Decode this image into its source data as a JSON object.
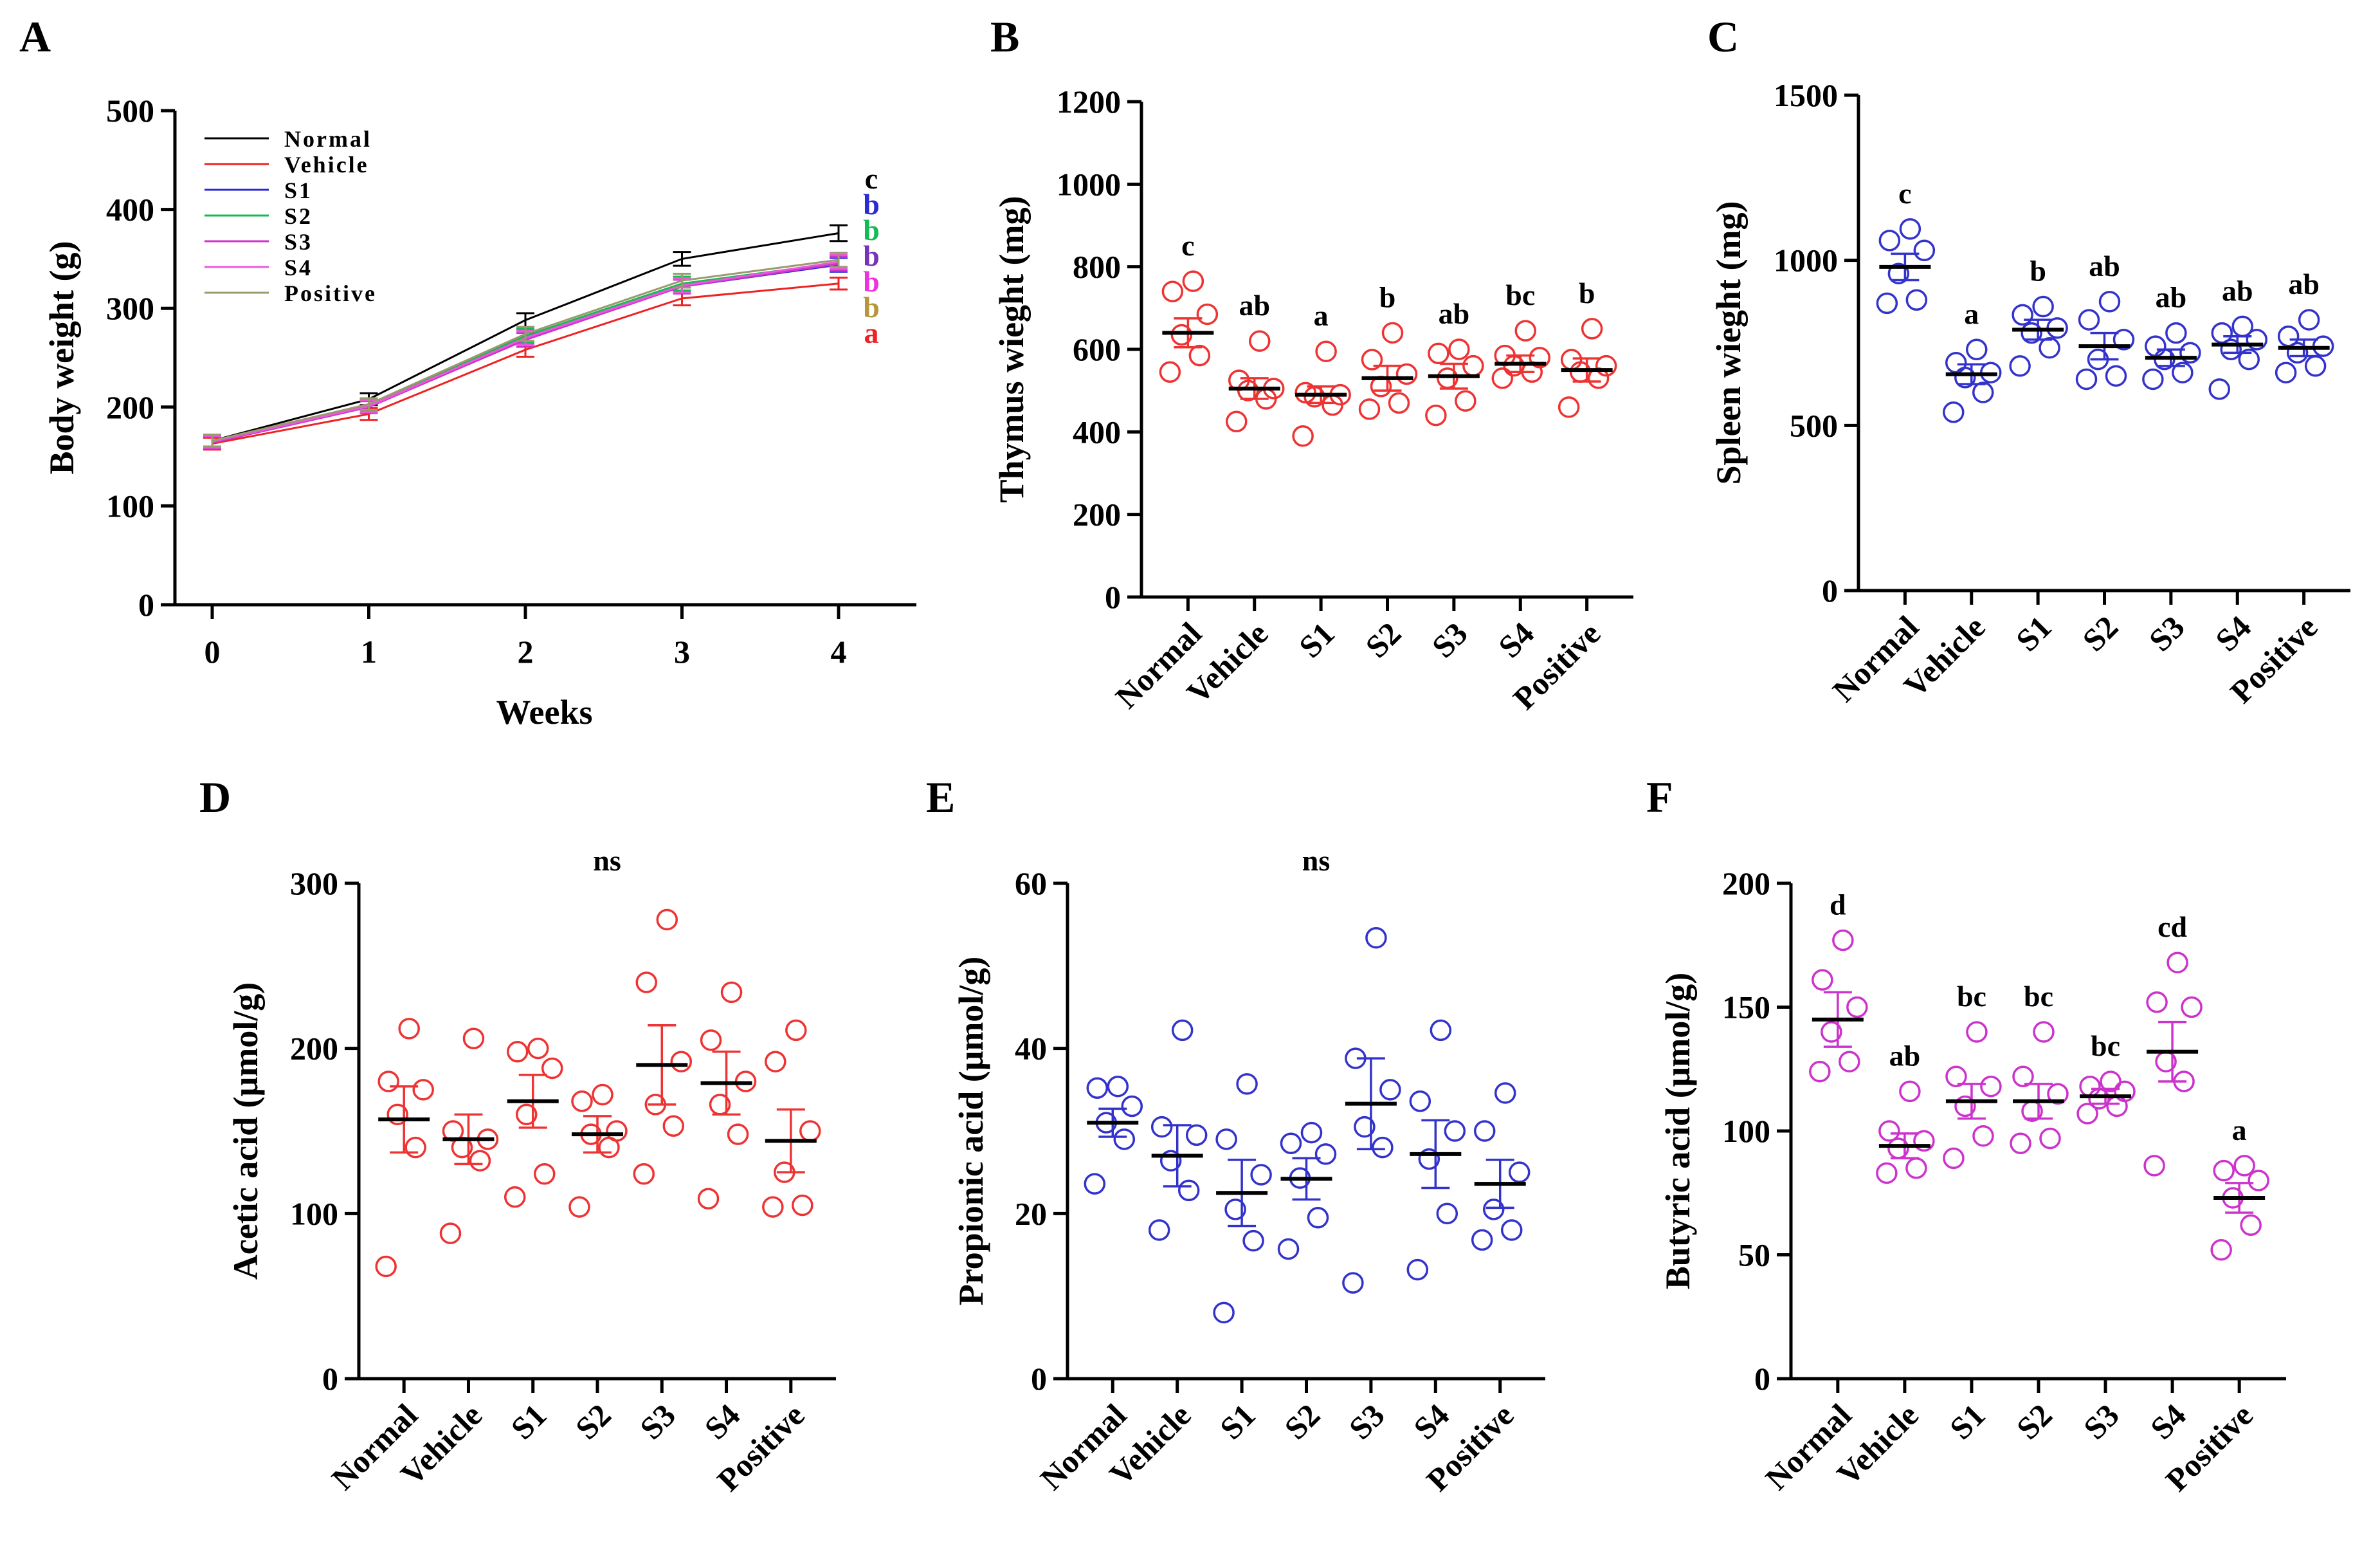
{
  "chart_data": [
    {
      "panel": "A",
      "type": "line",
      "xlabel": "Weeks",
      "ylabel": "Body weight (g)",
      "x": [
        0,
        1,
        2,
        3,
        4
      ],
      "xlim": [
        -0.2,
        4.5
      ],
      "ylim": [
        0,
        500
      ],
      "yticks": [
        0,
        100,
        200,
        300,
        400,
        500
      ],
      "legend_position": "top-left",
      "series": [
        {
          "name": "Normal",
          "color": "#000000",
          "values": [
            166,
            208,
            288,
            350,
            376
          ],
          "errors": [
            6,
            6,
            7,
            7,
            8
          ],
          "sig": "c",
          "sig_color": "#000000"
        },
        {
          "name": "Vehicle",
          "color": "#ee2222",
          "values": [
            163,
            193,
            258,
            310,
            325
          ],
          "errors": [
            6,
            6,
            7,
            7,
            6
          ],
          "sig": "a",
          "sig_color": "#ee2222"
        },
        {
          "name": "S1",
          "color": "#2a2ad6",
          "values": [
            165,
            201,
            270,
            322,
            344
          ],
          "errors": [
            6,
            6,
            7,
            7,
            7
          ],
          "sig": "b",
          "sig_color": "#2a2ad6"
        },
        {
          "name": "S2",
          "color": "#11bb55",
          "values": [
            165,
            202,
            272,
            325,
            346
          ],
          "errors": [
            6,
            6,
            7,
            7,
            7
          ],
          "sig": "b",
          "sig_color": "#11bb55"
        },
        {
          "name": "S3",
          "color": "#cc33cc",
          "values": [
            164,
            200,
            268,
            322,
            345
          ],
          "errors": [
            6,
            6,
            7,
            7,
            7
          ],
          "sig": "b",
          "sig_color": "#7733bb"
        },
        {
          "name": "S4",
          "color": "#ee55dd",
          "values": [
            165,
            201,
            270,
            323,
            347
          ],
          "errors": [
            6,
            6,
            7,
            7,
            7
          ],
          "sig": "b",
          "sig_color": "#ee33dd"
        },
        {
          "name": "Positive",
          "color": "#9a9a6e",
          "values": [
            166,
            203,
            274,
            328,
            349
          ],
          "errors": [
            6,
            6,
            7,
            7,
            7
          ],
          "sig": "b",
          "sig_color": "#b8963a"
        }
      ]
    },
    {
      "panel": "B",
      "type": "scatter",
      "ylabel": "Thymus wieght (mg)",
      "color": "#ee3333",
      "ylim": [
        0,
        1200
      ],
      "yticks": [
        0,
        200,
        400,
        600,
        800,
        1000,
        1200
      ],
      "categories": [
        "Normal",
        "Vehicle",
        "S1",
        "S2",
        "S3",
        "S4",
        "Positive"
      ],
      "means": [
        640,
        505,
        490,
        530,
        535,
        565,
        550
      ],
      "sems": [
        35,
        25,
        20,
        30,
        30,
        20,
        28
      ],
      "points": [
        [
          545,
          585,
          635,
          685,
          740,
          765
        ],
        [
          425,
          480,
          500,
          505,
          525,
          620
        ],
        [
          390,
          465,
          485,
          490,
          495,
          595
        ],
        [
          455,
          470,
          510,
          540,
          575,
          640
        ],
        [
          440,
          475,
          530,
          560,
          590,
          600
        ],
        [
          530,
          545,
          560,
          580,
          585,
          645
        ],
        [
          460,
          530,
          545,
          560,
          575,
          650
        ]
      ],
      "sig": [
        "c",
        "ab",
        "a",
        "b",
        "ab",
        "bc",
        "b"
      ]
    },
    {
      "panel": "C",
      "type": "scatter",
      "ylabel": "Spleen wieght (mg)",
      "color": "#3333cc",
      "ylim": [
        0,
        1500
      ],
      "yticks": [
        0,
        500,
        1000,
        1500
      ],
      "categories": [
        "Normal",
        "Vehicle",
        "S1",
        "S2",
        "S3",
        "S4",
        "Positive"
      ],
      "means": [
        980,
        655,
        790,
        740,
        705,
        745,
        735
      ],
      "sems": [
        40,
        30,
        30,
        40,
        25,
        25,
        25
      ],
      "points": [
        [
          870,
          880,
          960,
          1030,
          1060,
          1095
        ],
        [
          540,
          600,
          645,
          660,
          690,
          730
        ],
        [
          680,
          735,
          780,
          795,
          835,
          860
        ],
        [
          640,
          650,
          700,
          760,
          820,
          875
        ],
        [
          640,
          660,
          700,
          720,
          740,
          780
        ],
        [
          610,
          700,
          730,
          760,
          780,
          800
        ],
        [
          660,
          680,
          720,
          740,
          770,
          820
        ]
      ],
      "sig": [
        "c",
        "a",
        "b",
        "ab",
        "ab",
        "ab",
        "ab"
      ]
    },
    {
      "panel": "D",
      "type": "scatter",
      "ylabel": "Acetic acid (μmol/g)",
      "color": "#ee3333",
      "ylim": [
        0,
        300
      ],
      "yticks": [
        0,
        100,
        200,
        300
      ],
      "categories": [
        "Normal",
        "Vehicle",
        "S1",
        "S2",
        "S3",
        "S4",
        "Positive"
      ],
      "means": [
        157,
        145,
        168,
        148,
        190,
        179,
        144
      ],
      "sems": [
        20,
        15,
        16,
        11,
        24,
        19,
        19
      ],
      "points": [
        [
          68,
          140,
          160,
          175,
          180,
          212
        ],
        [
          88,
          132,
          140,
          145,
          150,
          206
        ],
        [
          110,
          124,
          160,
          188,
          198,
          200
        ],
        [
          104,
          140,
          148,
          150,
          168,
          172
        ],
        [
          124,
          153,
          166,
          192,
          240,
          278
        ],
        [
          109,
          148,
          166,
          180,
          205,
          234
        ],
        [
          104,
          105,
          125,
          150,
          192,
          211
        ]
      ],
      "annotation": "ns"
    },
    {
      "panel": "E",
      "type": "scatter",
      "ylabel": "Propionic acid (μmol/g)",
      "color": "#3333cc",
      "ylim": [
        0,
        60
      ],
      "yticks": [
        0,
        20,
        40,
        60
      ],
      "categories": [
        "Normal",
        "Vehicle",
        "S1",
        "S2",
        "S3",
        "S4",
        "Positive"
      ],
      "means": [
        31,
        27,
        22.5,
        24.2,
        33.3,
        27.2,
        23.6
      ],
      "sems": [
        1.7,
        3.7,
        4,
        2.5,
        5.5,
        4.1,
        2.9
      ],
      "points": [
        [
          23.6,
          29,
          31,
          33,
          35.2,
          35.4
        ],
        [
          18,
          22.8,
          26.4,
          29.5,
          30.5,
          42.2
        ],
        [
          8,
          16.7,
          20.5,
          24.7,
          29,
          35.7
        ],
        [
          15.7,
          19.5,
          24.3,
          27.2,
          28.5,
          29.8
        ],
        [
          11.6,
          28,
          30.5,
          35,
          38.8,
          53.4
        ],
        [
          13.2,
          20,
          26.6,
          30,
          33.6,
          42.2
        ],
        [
          16.8,
          18,
          20.5,
          25,
          30,
          34.6
        ]
      ],
      "annotation": "ns"
    },
    {
      "panel": "F",
      "type": "scatter",
      "ylabel": "Butyric acid (μmol/g)",
      "color": "#cc33cc",
      "ylim": [
        0,
        200
      ],
      "yticks": [
        0,
        50,
        100,
        150,
        200
      ],
      "categories": [
        "Normal",
        "Vehicle",
        "S1",
        "S2",
        "S3",
        "S4",
        "Positive"
      ],
      "means": [
        145,
        94,
        112,
        112,
        114,
        132,
        73
      ],
      "sems": [
        11,
        5,
        7,
        7,
        3,
        12,
        6
      ],
      "points": [
        [
          124,
          128,
          140,
          150,
          161,
          177
        ],
        [
          83,
          85,
          93,
          96,
          100,
          116
        ],
        [
          89,
          98,
          110,
          118,
          122,
          140
        ],
        [
          95,
          97,
          108,
          115,
          122,
          140
        ],
        [
          107,
          110,
          113,
          116,
          118,
          120
        ],
        [
          86,
          120,
          128,
          150,
          152,
          168
        ],
        [
          52,
          62,
          73,
          80,
          84,
          86
        ]
      ],
      "sig": [
        "d",
        "ab",
        "bc",
        "bc",
        "bc",
        "cd",
        "a"
      ]
    }
  ]
}
